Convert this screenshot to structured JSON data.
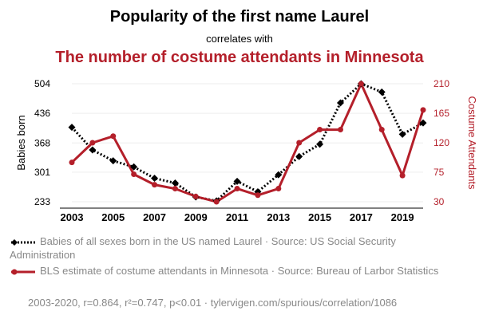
{
  "chart_data": {
    "type": "line",
    "title": "Popularity of the first name Laurel",
    "subtitle": "correlates with",
    "title2": "The number of costume attendants in Minnesota",
    "x": [
      2003,
      2004,
      2005,
      2006,
      2007,
      2008,
      2009,
      2010,
      2011,
      2012,
      2013,
      2014,
      2015,
      2016,
      2017,
      2018,
      2019,
      2020
    ],
    "xticks": [
      "2003",
      "2005",
      "2007",
      "2009",
      "2011",
      "2013",
      "2015",
      "2017",
      "2019"
    ],
    "xlim": [
      2003,
      2020
    ],
    "series": [
      {
        "name": "Babies of all sexes born in the US named Laurel · Source: US Social Security Administration",
        "axis": "left",
        "color": "#000000",
        "style": "dotted",
        "marker": "diamond",
        "values": [
          404,
          352,
          327,
          313,
          287,
          276,
          244,
          235,
          280,
          256,
          295,
          337,
          365,
          460,
          504,
          485,
          388,
          414
        ]
      },
      {
        "name": "BLS estimate of costume attendants in Minnesota · Source: Bureau of Larbor Statistics",
        "axis": "right",
        "color": "#b41f2a",
        "style": "solid",
        "marker": "circle",
        "values": [
          90,
          120,
          130,
          72,
          56,
          50,
          38,
          30,
          50,
          40,
          50,
          120,
          140,
          140,
          210,
          140,
          70,
          170
        ]
      }
    ],
    "y_left": {
      "label": "Babies born",
      "ticks": [
        "233",
        "301",
        "368",
        "436",
        "504"
      ],
      "ylim": [
        233,
        504
      ]
    },
    "y_right": {
      "label": "Costume Attendants",
      "ticks": [
        "30",
        "75",
        "120",
        "165",
        "210"
      ],
      "ylim": [
        30,
        210
      ]
    },
    "footer": "2003-2020, r=0.864, r²=0.747, p<0.01 · tylervigen.com/spurious/correlation/1086",
    "colors": {
      "left": "#000000",
      "right": "#b41f2a",
      "grid": "#eeeeee"
    }
  }
}
